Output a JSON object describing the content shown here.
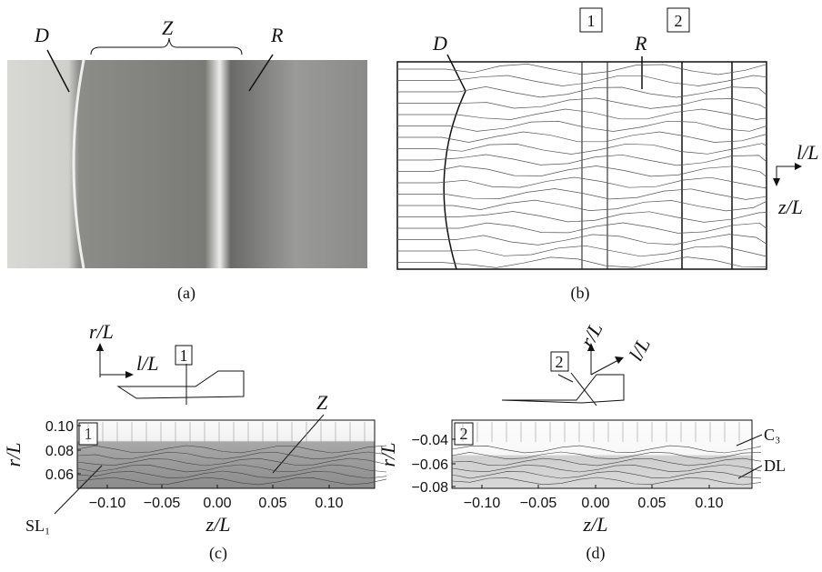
{
  "panels": {
    "a": {
      "caption": "(a)",
      "labels": [
        "D",
        "Z",
        "R"
      ]
    },
    "b": {
      "caption": "(b)",
      "labels": [
        "D",
        "R"
      ],
      "sections": [
        "1",
        "2"
      ],
      "axes": [
        "l/L",
        "z/L"
      ]
    },
    "c": {
      "caption": "(c)",
      "inset": {
        "axes": [
          "r/L",
          "l/L"
        ],
        "section": "1"
      },
      "section": "1",
      "y_label": "r/L",
      "x_label": "z/L",
      "xticks": [
        "−0.10",
        "−0.05",
        "0.00",
        "0.05",
        "0.10"
      ],
      "yticks": [
        "0.10",
        "0.08",
        "0.06"
      ],
      "labels": [
        "Z",
        "SL₁"
      ]
    },
    "d": {
      "caption": "(d)",
      "inset": {
        "axes": [
          "r/L",
          "l/L"
        ],
        "section": "2"
      },
      "section": "2",
      "y_label": "r/L",
      "x_label": "z/L",
      "xticks": [
        "−0.10",
        "−0.05",
        "0.00",
        "0.05",
        "0.10"
      ],
      "yticks": [
        "−0.04",
        "−0.06",
        "−0.08"
      ],
      "labels": [
        "C₃",
        "DL"
      ]
    }
  }
}
